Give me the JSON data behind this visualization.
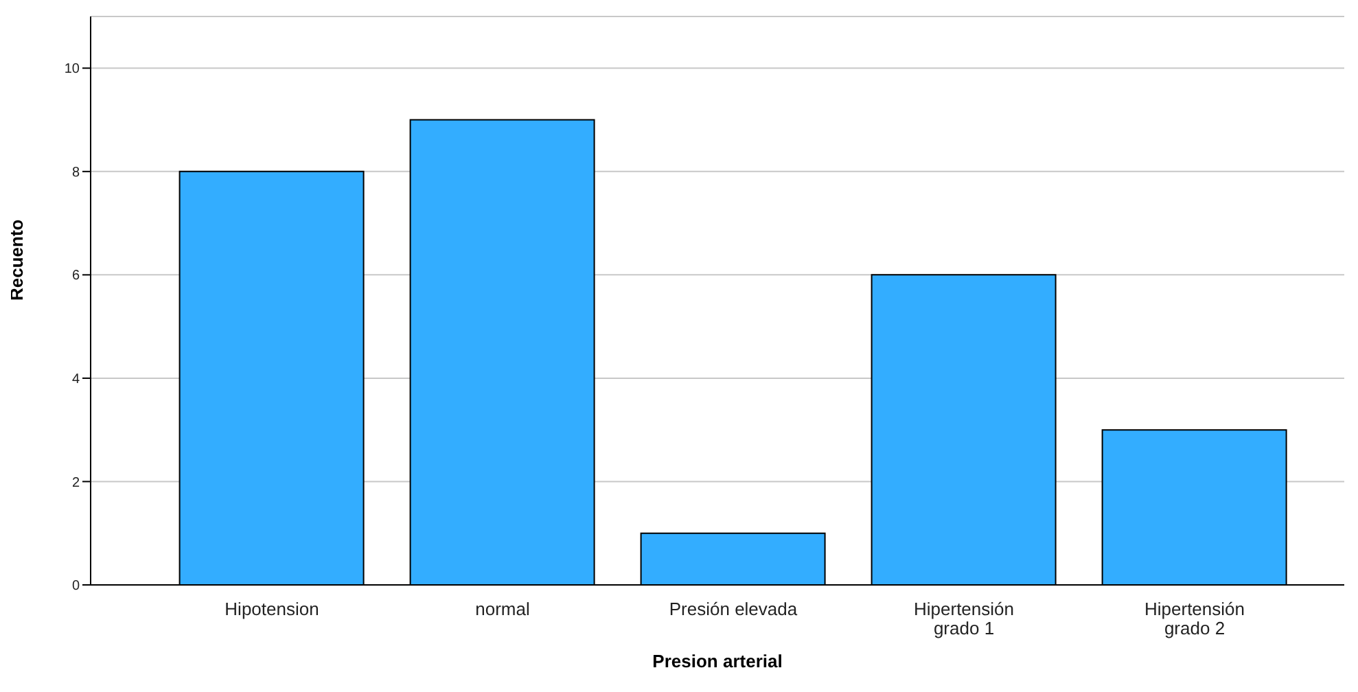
{
  "chart_data": {
    "type": "bar",
    "xlabel": "Presion arterial",
    "ylabel": "Recuento",
    "categories": [
      "Hipotension",
      "normal",
      "Presión elevada",
      "Hipertensión grado 1",
      "Hipertensión grado 2"
    ],
    "values": [
      8,
      9,
      1,
      6,
      3
    ],
    "color": "#33adff",
    "ylim": [
      0,
      11
    ],
    "yticks": [
      0,
      2,
      4,
      6,
      8,
      10
    ],
    "grid": "y"
  }
}
